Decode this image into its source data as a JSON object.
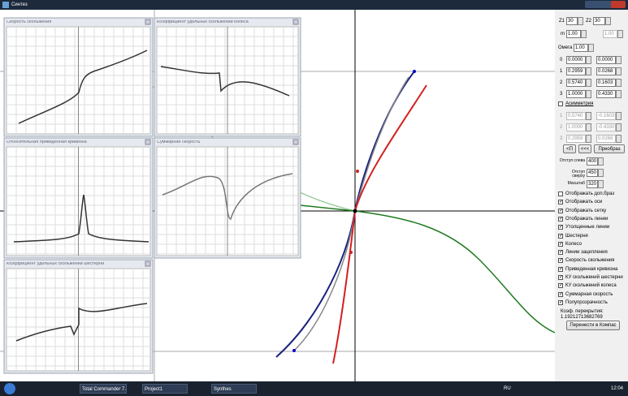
{
  "window": {
    "title": "Синтез"
  },
  "panels": [
    {
      "title": "Скорость скольжения"
    },
    {
      "title": "Коэффициент удельных скольжений колеса"
    },
    {
      "title": "Относительная приведенная кривизна"
    },
    {
      "title": "Суммарная скорость"
    },
    {
      "title": "Коэффициент удельных скольжений шестерни"
    }
  ],
  "params": {
    "z1_label": "Z1",
    "z1": "30",
    "z2_label": "Z2",
    "z2": "30",
    "m_label": "m",
    "m": "1.00",
    "m2": "1.00",
    "omega_label": "Омега",
    "omega": "1.00"
  },
  "points": [
    {
      "index": "0",
      "a": "0.0000",
      "b": "0.0000"
    },
    {
      "index": "1",
      "a": "0.2959",
      "b": "0.0268"
    },
    {
      "index": "2",
      "a": "0.5740",
      "b": "0.1603"
    },
    {
      "index": "3",
      "a": "1.0000",
      "b": "0.4330"
    }
  ],
  "asym_label": "Асимметрия",
  "asym_points": [
    {
      "index": "1",
      "a": "0.5740",
      "b": "-0.1603"
    },
    {
      "index": "2",
      "a": "1.0000",
      "b": "-0.4330"
    },
    {
      "index": "3",
      "a": "0.2959",
      "b": "0.0268"
    }
  ],
  "buttons": [
    "<П",
    "<<<",
    "Преобраз"
  ],
  "offsets": [
    {
      "label": "Отступ слева",
      "value": "400"
    },
    {
      "label": "Отступ сверху",
      "value": "450"
    },
    {
      "label": "Масштаб",
      "value": "320"
    }
  ],
  "checkboxes": [
    {
      "label": "Отображать доп.браз",
      "checked": false
    },
    {
      "label": "Отображать оси",
      "checked": true
    },
    {
      "label": "Отображать сетку",
      "checked": true
    },
    {
      "label": "Отображать линии",
      "checked": true
    },
    {
      "label": "Утолщенные линии",
      "checked": true
    },
    {
      "label": "Шестерня",
      "checked": true
    },
    {
      "label": "Колесо",
      "checked": true
    },
    {
      "label": "Линии зацепления",
      "checked": true
    },
    {
      "label": "Скорость скольжения",
      "checked": true
    },
    {
      "label": "Приведенная кривизна",
      "checked": true
    },
    {
      "label": "КУ скольжений шестерни",
      "checked": true
    },
    {
      "label": "КУ скольжений колеса",
      "checked": true
    },
    {
      "label": "Суммарная скорость",
      "checked": true
    },
    {
      "label": "Полупрозрачность",
      "checked": true
    }
  ],
  "overlap": {
    "label": "Коэф. перекрытия:",
    "value": "1.19212713682769"
  },
  "export_button": "Перенести в Компас",
  "taskbar": {
    "items": [
      "Total Commander 7...",
      "Project1",
      "Synthes"
    ],
    "lang": "RU",
    "clock": "12:04"
  }
}
